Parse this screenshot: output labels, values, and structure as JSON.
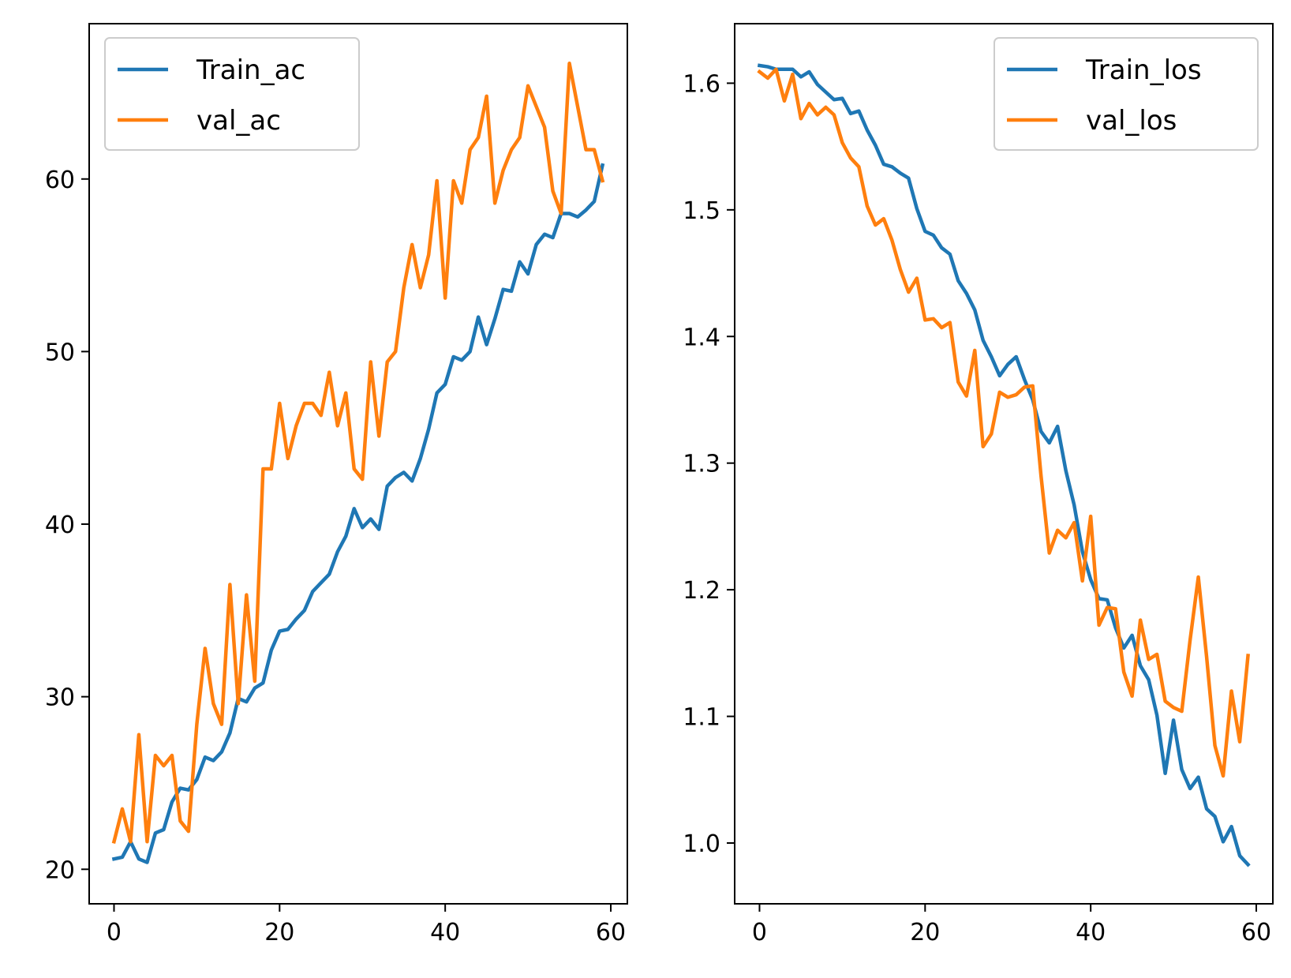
{
  "chart_data": [
    {
      "type": "line",
      "xlim": [
        -3,
        62
      ],
      "ylim": [
        18,
        69
      ],
      "xticks": [
        0,
        20,
        40,
        60
      ],
      "yticks": [
        20,
        30,
        40,
        50,
        60
      ],
      "legend_position": "upper-left",
      "series": [
        {
          "name": "Train_ac",
          "color": "#1f77b4",
          "x": [
            0,
            1,
            2,
            3,
            4,
            5,
            6,
            7,
            8,
            9,
            10,
            11,
            12,
            13,
            14,
            15,
            16,
            17,
            18,
            19,
            20,
            21,
            22,
            23,
            24,
            25,
            26,
            27,
            28,
            29,
            30,
            31,
            32,
            33,
            34,
            35,
            36,
            37,
            38,
            39,
            40,
            41,
            42,
            43,
            44,
            45,
            46,
            47,
            48,
            49,
            50,
            51,
            52,
            53,
            54,
            55,
            56,
            57,
            58,
            59
          ],
          "values": [
            20.6,
            20.7,
            21.6,
            20.6,
            20.4,
            22.1,
            22.3,
            23.9,
            24.7,
            24.6,
            25.2,
            26.5,
            26.3,
            26.8,
            27.9,
            29.9,
            29.7,
            30.5,
            30.8,
            32.7,
            33.8,
            33.9,
            34.5,
            35.0,
            36.1,
            36.6,
            37.1,
            38.4,
            39.3,
            40.9,
            39.8,
            40.3,
            39.7,
            42.2,
            42.7,
            43.0,
            42.5,
            43.8,
            45.5,
            47.6,
            48.1,
            49.7,
            49.5,
            50.0,
            52.0,
            50.4,
            51.9,
            53.6,
            53.5,
            55.2,
            54.5,
            56.2,
            56.8,
            56.6,
            58.0,
            58.0,
            57.8,
            58.2,
            58.7,
            60.8
          ]
        },
        {
          "name": "val_ac",
          "color": "#ff7f0e",
          "x": [
            0,
            1,
            2,
            3,
            4,
            5,
            6,
            7,
            8,
            9,
            10,
            11,
            12,
            13,
            14,
            15,
            16,
            17,
            18,
            19,
            20,
            21,
            22,
            23,
            24,
            25,
            26,
            27,
            28,
            29,
            30,
            31,
            32,
            33,
            34,
            35,
            36,
            37,
            38,
            39,
            40,
            41,
            42,
            43,
            44,
            45,
            46,
            47,
            48,
            49,
            50,
            51,
            52,
            53,
            54,
            55,
            56,
            57,
            58,
            59
          ],
          "values": [
            21.6,
            23.5,
            21.6,
            27.8,
            21.6,
            26.6,
            26.0,
            26.6,
            22.8,
            22.2,
            28.4,
            32.8,
            29.6,
            28.4,
            36.5,
            29.6,
            35.9,
            30.9,
            43.2,
            43.2,
            47.0,
            43.8,
            45.7,
            47.0,
            47.0,
            46.3,
            48.8,
            45.7,
            47.6,
            43.2,
            42.6,
            49.4,
            45.1,
            49.4,
            50.0,
            53.7,
            56.2,
            53.7,
            55.6,
            59.9,
            53.1,
            59.9,
            58.6,
            61.7,
            62.4,
            64.8,
            58.6,
            60.5,
            61.7,
            62.4,
            65.4,
            64.2,
            63.0,
            59.3,
            58.0,
            66.7,
            64.2,
            61.7,
            61.7,
            59.9
          ]
        }
      ]
    },
    {
      "type": "line",
      "xlim": [
        -3,
        62
      ],
      "ylim": [
        0.952,
        1.647
      ],
      "xticks": [
        0,
        20,
        40,
        60
      ],
      "yticks": [
        1.0,
        1.1,
        1.2,
        1.3,
        1.4,
        1.5,
        1.6
      ],
      "ytick_labels": [
        "1.0",
        "1.1",
        "1.2",
        "1.3",
        "1.4",
        "1.5",
        "1.6"
      ],
      "legend_position": "upper-right",
      "series": [
        {
          "name": "Train_los",
          "color": "#1f77b4",
          "x": [
            0,
            1,
            2,
            3,
            4,
            5,
            6,
            7,
            8,
            9,
            10,
            11,
            12,
            13,
            14,
            15,
            16,
            17,
            18,
            19,
            20,
            21,
            22,
            23,
            24,
            25,
            26,
            27,
            28,
            29,
            30,
            31,
            32,
            33,
            34,
            35,
            36,
            37,
            38,
            39,
            40,
            41,
            42,
            43,
            44,
            45,
            46,
            47,
            48,
            49,
            50,
            51,
            52,
            53,
            54,
            55,
            56,
            57,
            58,
            59
          ],
          "values": [
            1.614,
            1.613,
            1.611,
            1.611,
            1.611,
            1.605,
            1.609,
            1.599,
            1.593,
            1.587,
            1.588,
            1.576,
            1.578,
            1.563,
            1.551,
            1.536,
            1.534,
            1.529,
            1.525,
            1.501,
            1.483,
            1.48,
            1.47,
            1.465,
            1.444,
            1.434,
            1.421,
            1.397,
            1.384,
            1.369,
            1.378,
            1.384,
            1.366,
            1.35,
            1.325,
            1.316,
            1.329,
            1.294,
            1.267,
            1.23,
            1.208,
            1.193,
            1.192,
            1.17,
            1.154,
            1.164,
            1.14,
            1.129,
            1.101,
            1.055,
            1.097,
            1.058,
            1.043,
            1.052,
            1.027,
            1.021,
            1.001,
            1.013,
            0.99,
            0.983
          ]
        },
        {
          "name": "val_los",
          "color": "#ff7f0e",
          "x": [
            0,
            1,
            2,
            3,
            4,
            5,
            6,
            7,
            8,
            9,
            10,
            11,
            12,
            13,
            14,
            15,
            16,
            17,
            18,
            19,
            20,
            21,
            22,
            23,
            24,
            25,
            26,
            27,
            28,
            29,
            30,
            31,
            32,
            33,
            34,
            35,
            36,
            37,
            38,
            39,
            40,
            41,
            42,
            43,
            44,
            45,
            46,
            47,
            48,
            49,
            50,
            51,
            52,
            53,
            54,
            55,
            56,
            57,
            58,
            59
          ],
          "values": [
            1.609,
            1.604,
            1.611,
            1.586,
            1.607,
            1.572,
            1.584,
            1.575,
            1.581,
            1.575,
            1.553,
            1.541,
            1.534,
            1.503,
            1.488,
            1.493,
            1.476,
            1.453,
            1.435,
            1.446,
            1.413,
            1.414,
            1.407,
            1.411,
            1.364,
            1.353,
            1.389,
            1.313,
            1.323,
            1.356,
            1.352,
            1.354,
            1.36,
            1.361,
            1.29,
            1.229,
            1.247,
            1.241,
            1.253,
            1.207,
            1.258,
            1.172,
            1.186,
            1.185,
            1.135,
            1.116,
            1.176,
            1.145,
            1.149,
            1.112,
            1.107,
            1.104,
            1.16,
            1.21,
            1.147,
            1.077,
            1.053,
            1.12,
            1.08,
            1.148
          ]
        }
      ]
    }
  ]
}
